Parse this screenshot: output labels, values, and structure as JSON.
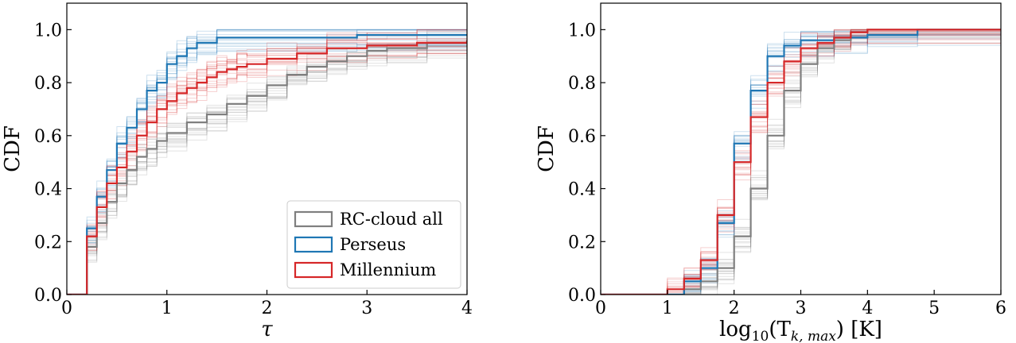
{
  "chart_data": [
    {
      "type": "line",
      "subtype": "empirical CDF step",
      "xlabel": "τ",
      "ylabel": "CDF",
      "xlim": [
        0,
        4
      ],
      "ylim": [
        0,
        1.1
      ],
      "xticks": [
        "0",
        "1",
        "2",
        "3",
        "4"
      ],
      "yticks": [
        "0.0",
        "0.2",
        "0.4",
        "0.6",
        "0.8",
        "1.0"
      ],
      "legend": {
        "placement": "bottom-right"
      },
      "series": [
        {
          "name": "RC-cloud all",
          "color": "#7f7f7f",
          "x": [
            0.2,
            0.3,
            0.4,
            0.5,
            0.6,
            0.7,
            0.8,
            0.9,
            1.0,
            1.2,
            1.4,
            1.6,
            1.8,
            2.0,
            2.2,
            2.4,
            2.6,
            2.8,
            3.0,
            3.2,
            3.6,
            4.0
          ],
          "y": [
            0.18,
            0.27,
            0.35,
            0.42,
            0.47,
            0.52,
            0.55,
            0.58,
            0.61,
            0.65,
            0.68,
            0.72,
            0.75,
            0.79,
            0.83,
            0.86,
            0.88,
            0.9,
            0.92,
            0.93,
            0.95,
            0.96
          ]
        },
        {
          "name": "Perseus",
          "color": "#1f77b4",
          "x": [
            0.2,
            0.3,
            0.4,
            0.5,
            0.6,
            0.7,
            0.8,
            0.9,
            1.0,
            1.1,
            1.2,
            1.3,
            1.5,
            2.9,
            4.0
          ],
          "y": [
            0.25,
            0.37,
            0.47,
            0.57,
            0.63,
            0.7,
            0.77,
            0.8,
            0.87,
            0.9,
            0.93,
            0.95,
            0.97,
            0.98,
            0.98
          ]
        },
        {
          "name": "Millennium",
          "color": "#d62728",
          "x": [
            0.2,
            0.3,
            0.4,
            0.5,
            0.6,
            0.7,
            0.8,
            0.9,
            1.0,
            1.1,
            1.2,
            1.3,
            1.4,
            1.5,
            1.6,
            1.7,
            1.8,
            2.0,
            2.3,
            2.6,
            3.0,
            3.5,
            4.0
          ],
          "y": [
            0.22,
            0.33,
            0.42,
            0.48,
            0.54,
            0.6,
            0.65,
            0.7,
            0.73,
            0.76,
            0.78,
            0.8,
            0.82,
            0.84,
            0.85,
            0.86,
            0.87,
            0.89,
            0.91,
            0.93,
            0.94,
            0.95,
            0.96
          ]
        }
      ]
    },
    {
      "type": "line",
      "subtype": "empirical CDF step",
      "xlabel_main": "log",
      "xlabel_sub": "10",
      "xlabel_paren": "(T",
      "xlabel_sub2": "k, max",
      "xlabel_tail": ") [K]",
      "ylabel": "CDF",
      "xlim": [
        0,
        6
      ],
      "ylim": [
        0,
        1.1
      ],
      "xticks": [
        "0",
        "1",
        "2",
        "3",
        "4",
        "5",
        "6"
      ],
      "yticks": [
        "0.0",
        "0.2",
        "0.4",
        "0.6",
        "0.8",
        "1.0"
      ],
      "series": [
        {
          "name": "RC-cloud all",
          "color": "#7f7f7f",
          "x": [
            1.25,
            1.5,
            1.75,
            2.0,
            2.25,
            2.5,
            2.75,
            3.0,
            3.25,
            3.5,
            3.75,
            4.0,
            6.0
          ],
          "y": [
            0.02,
            0.05,
            0.1,
            0.22,
            0.4,
            0.6,
            0.77,
            0.87,
            0.93,
            0.96,
            0.99,
            1.0,
            1.0
          ]
        },
        {
          "name": "Perseus",
          "color": "#1f77b4",
          "x": [
            1.25,
            1.5,
            1.75,
            2.0,
            2.25,
            2.5,
            2.75,
            3.0,
            3.5,
            4.0,
            4.75,
            6.0
          ],
          "y": [
            0.05,
            0.1,
            0.27,
            0.57,
            0.77,
            0.9,
            0.94,
            0.96,
            0.97,
            0.98,
            1.0,
            1.0
          ]
        },
        {
          "name": "Millennium",
          "color": "#d62728",
          "x": [
            1.0,
            1.25,
            1.5,
            1.75,
            2.0,
            2.25,
            2.5,
            2.75,
            3.0,
            3.25,
            3.5,
            3.75,
            4.0,
            6.0
          ],
          "y": [
            0.02,
            0.06,
            0.13,
            0.3,
            0.5,
            0.67,
            0.8,
            0.88,
            0.93,
            0.95,
            0.97,
            0.99,
            1.0,
            1.0
          ]
        }
      ]
    }
  ]
}
